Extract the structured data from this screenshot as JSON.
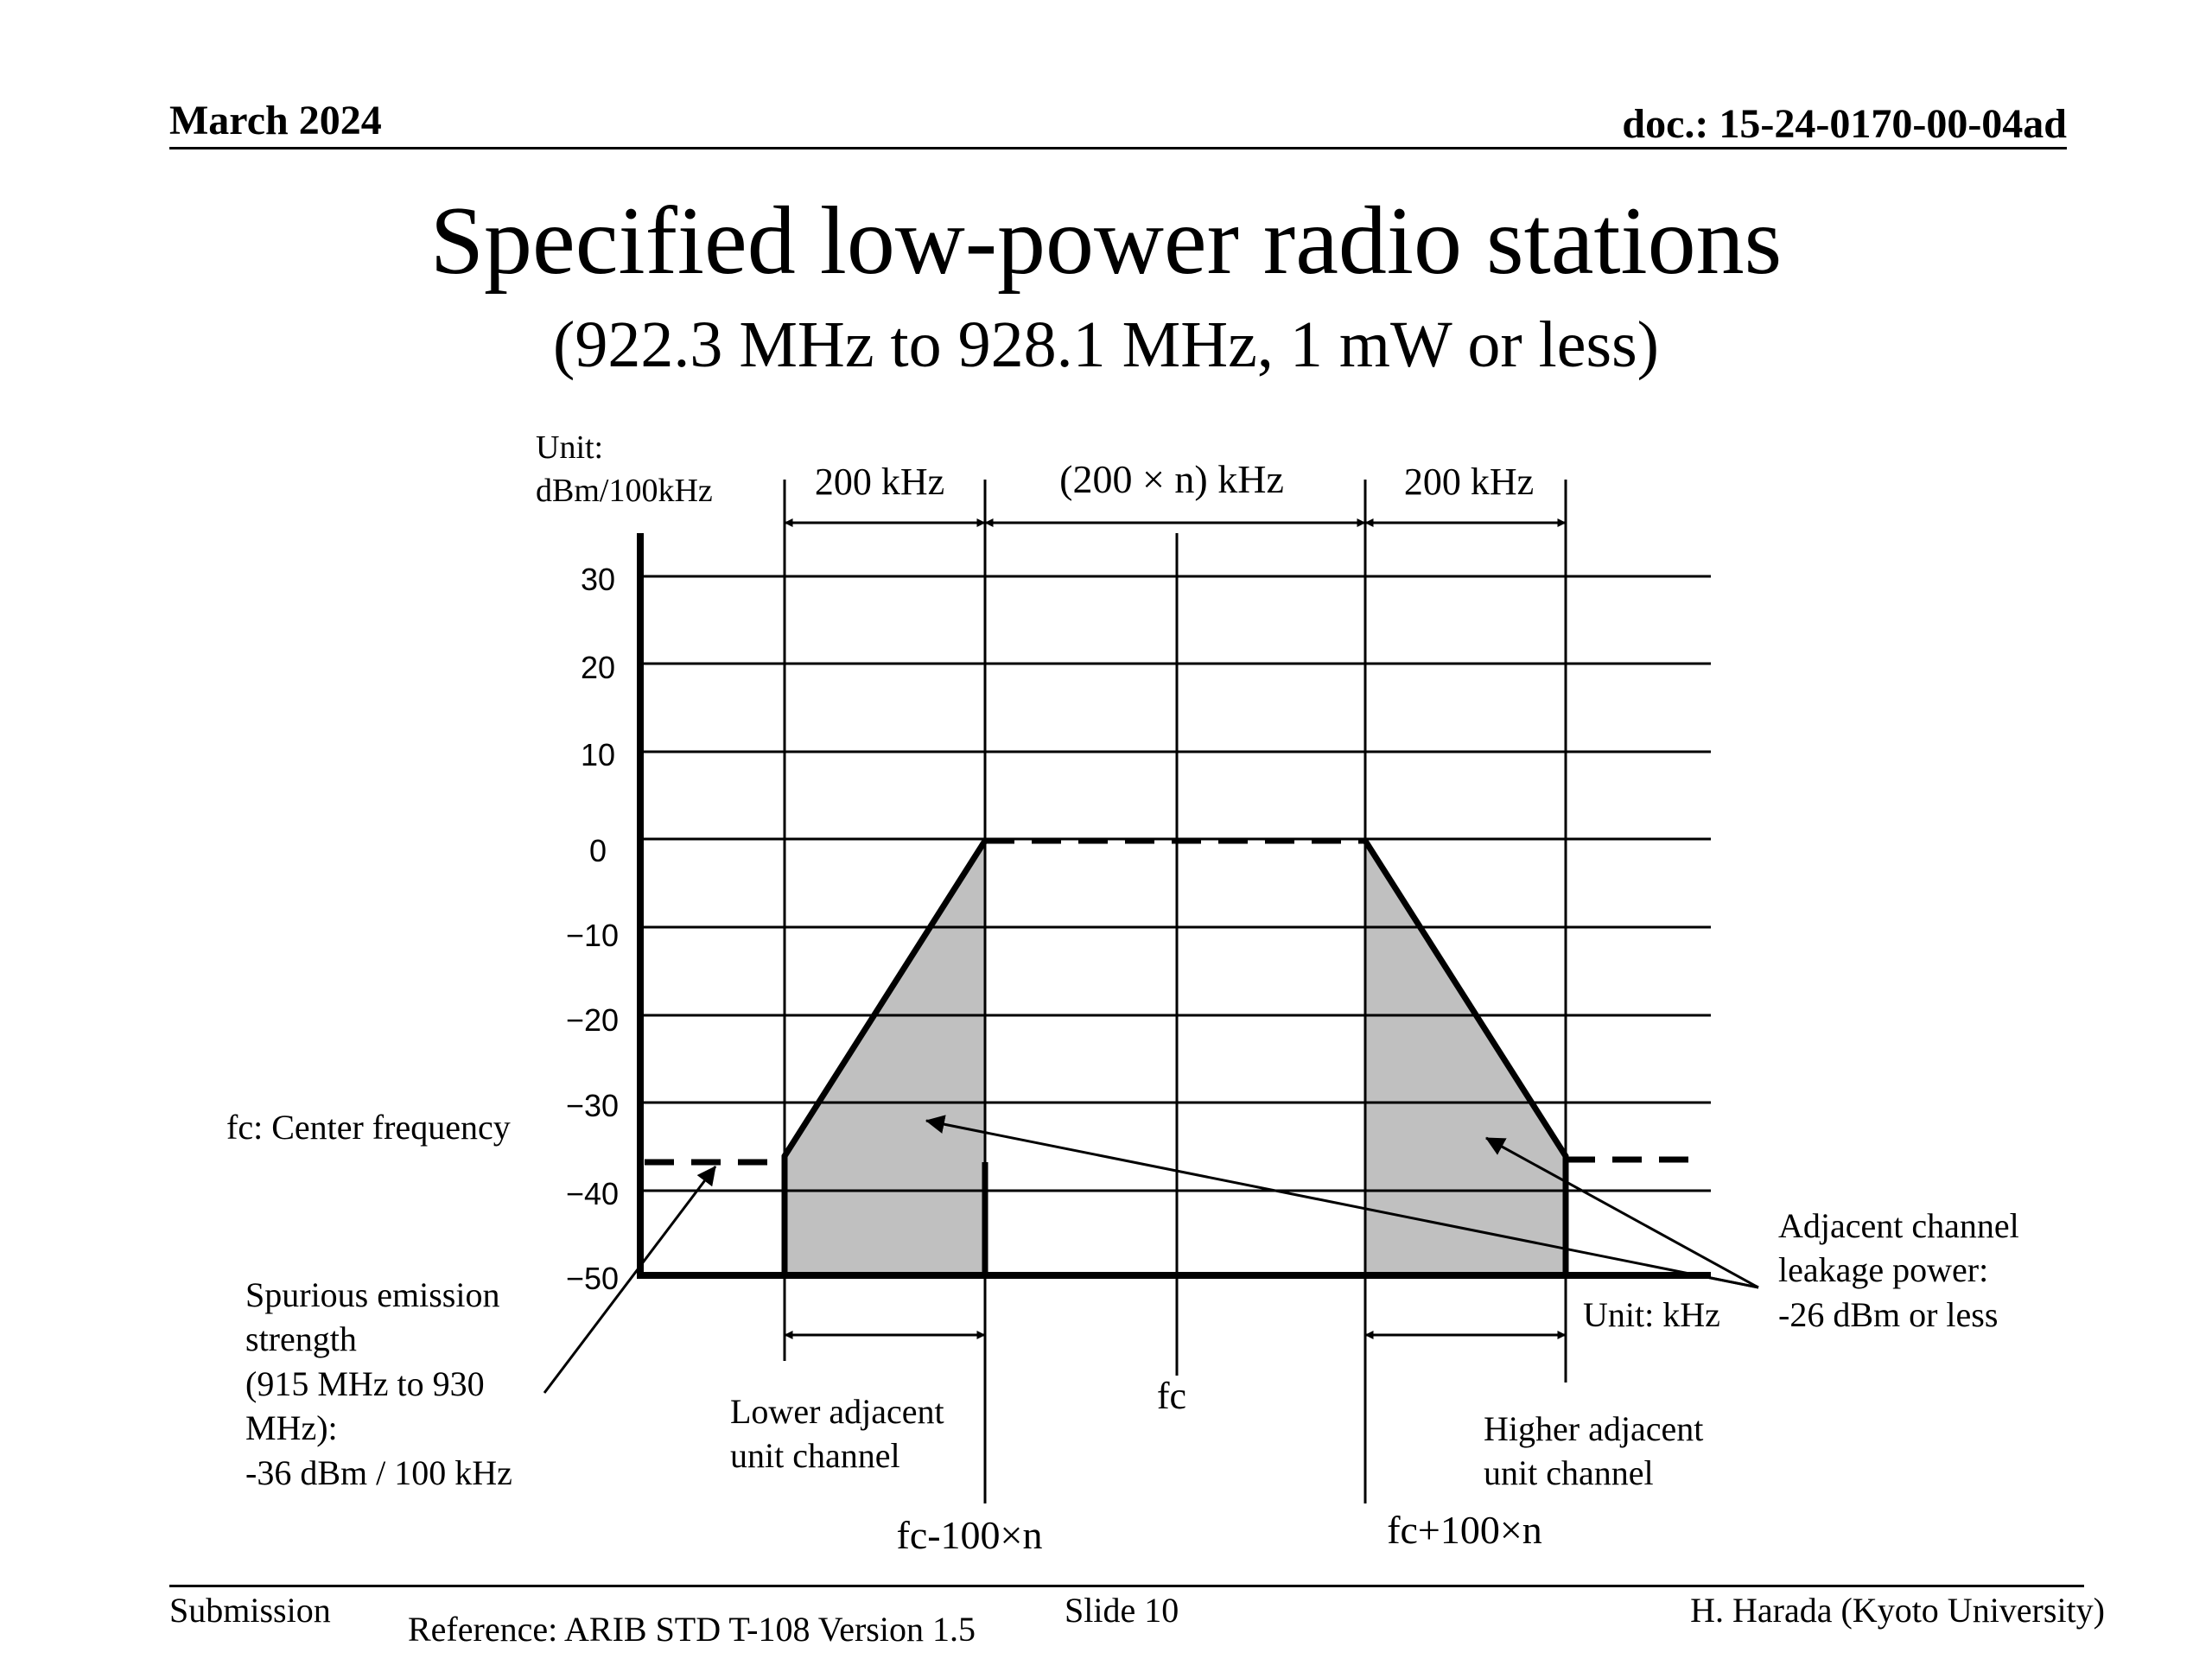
{
  "header": {
    "date": "March 2024",
    "doc": "doc.: 15-24-0170-00-04ad"
  },
  "title": "Specified low-power radio stations",
  "subtitle": "(922.3 MHz to 928.1 MHz, 1 mW or less)",
  "diagram": {
    "y_unit_line1": "Unit:",
    "y_unit_line2": "dBm/100kHz",
    "y_ticks": [
      "30",
      "20",
      "10",
      "0",
      "−10",
      "−20",
      "−30",
      "−40",
      "−50"
    ],
    "y_tick_values": [
      30,
      20,
      10,
      0,
      -10,
      -20,
      -30,
      -40,
      -50
    ],
    "width_left": "200 kHz",
    "width_center": "(200 × n) kHz",
    "width_right": "200 kHz",
    "fc_note": "fc: Center frequency",
    "spurious_lines": [
      "Spurious emission",
      "strength",
      "(915 MHz to 930",
      "MHz):",
      "-36 dBm / 100 kHz"
    ],
    "lower_channel_lines": [
      "Lower adjacent",
      "unit channel"
    ],
    "higher_channel_lines": [
      "Higher adjacent",
      "unit channel"
    ],
    "fc_label": "fc",
    "fc_minus": "fc-100×n",
    "fc_plus": "fc+100×n",
    "x_unit": "Unit: kHz",
    "acl_lines": [
      "Adjacent channel",
      "leakage power:",
      "-26 dBm or less"
    ],
    "levels": {
      "in_band_dbm": 0,
      "spurious_dbm": -36,
      "adjacent_leakage_dbm": -26
    },
    "colors": {
      "fill": "#c0c0c0",
      "line": "#000000"
    }
  },
  "footer": {
    "left": "Submission",
    "center": "Slide 10",
    "right": "H. Harada (Kyoto University)",
    "reference": "Reference: ARIB STD T-108 Version 1.5"
  }
}
